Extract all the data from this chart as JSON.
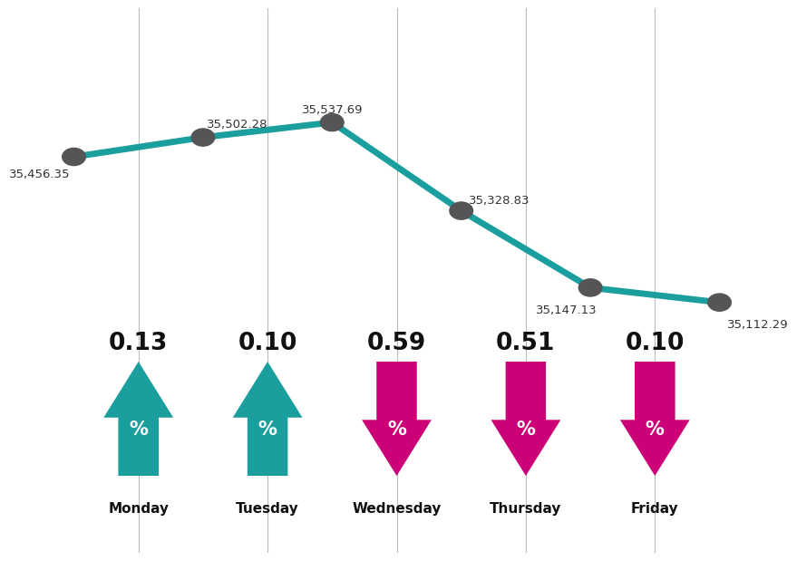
{
  "days": [
    "Monday",
    "Tuesday",
    "Wednesday",
    "Thursday",
    "Friday"
  ],
  "values": [
    35456.35,
    35502.28,
    35537.69,
    35328.83,
    35147.13,
    35112.29
  ],
  "value_labels": [
    "35,456.35",
    "35,502.28",
    "35,537.69",
    "35,328.83",
    "35,147.13",
    "35,112.29"
  ],
  "pct_values": [
    "0.13",
    "0.10",
    "0.59",
    "0.51",
    "0.10"
  ],
  "pct_directions": [
    "up",
    "up",
    "down",
    "down",
    "down"
  ],
  "teal_color": "#1A9E9E",
  "magenta_color": "#CC0077",
  "dot_color": "#555558",
  "bg_color": "#FFFFFF",
  "line_color": "#1A9E9E",
  "sep_line_color": "#BBBBBB",
  "label_color": "#333333",
  "day_label_color": "#111111",
  "pct_num_color": "#111111",
  "note": "6 data points: Mon=0, Tue=1, Wed=2, Thu=3, Fri4=4, Fri5=5. Vertical sep lines at positions 0,1,3,4. Arrow centers at same x as sep lines."
}
